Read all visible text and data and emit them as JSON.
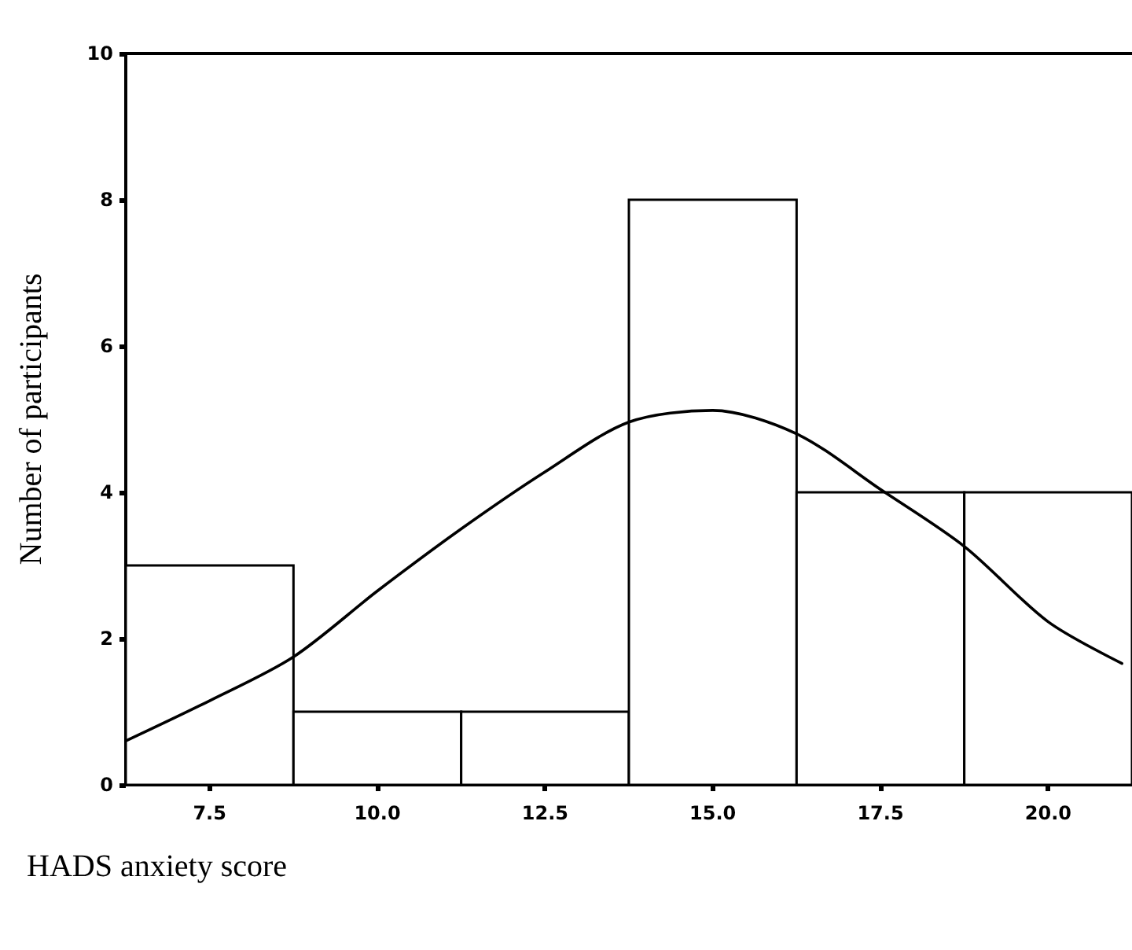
{
  "chart_data": {
    "type": "histogram",
    "xlabel": "HADS anxiety score",
    "ylabel": "Number of participants",
    "bins": [
      6.25,
      8.75,
      11.25,
      13.75,
      16.25,
      18.75,
      21.25
    ],
    "values": [
      3,
      1,
      1,
      8,
      4,
      4
    ],
    "color": "#ffffff",
    "series": [
      {
        "type": "line",
        "color": "#000000",
        "x": [
          6.25,
          7.5,
          8.75,
          10.0,
          11.25,
          12.5,
          13.75,
          15.0,
          16.25,
          17.5,
          18.75,
          20.0,
          21.1
        ],
        "values": [
          0.6,
          1.15,
          1.75,
          2.65,
          3.5,
          4.28,
          4.96,
          5.12,
          4.8,
          4.04,
          3.26,
          2.23,
          1.66
        ]
      }
    ],
    "xlim": [
      6.25,
      21.25
    ],
    "ylim": [
      0,
      10
    ],
    "xticks": [
      7.5,
      {
        "value": 10,
        "label": "10.0"
      },
      12.5,
      {
        "value": 15,
        "label": "15.0"
      },
      17.5,
      {
        "value": 20,
        "label": "20.0"
      }
    ],
    "yticks": [
      0,
      2,
      4,
      6,
      8,
      10
    ],
    "grid": false,
    "marker": "none",
    "line_style": "solid"
  }
}
